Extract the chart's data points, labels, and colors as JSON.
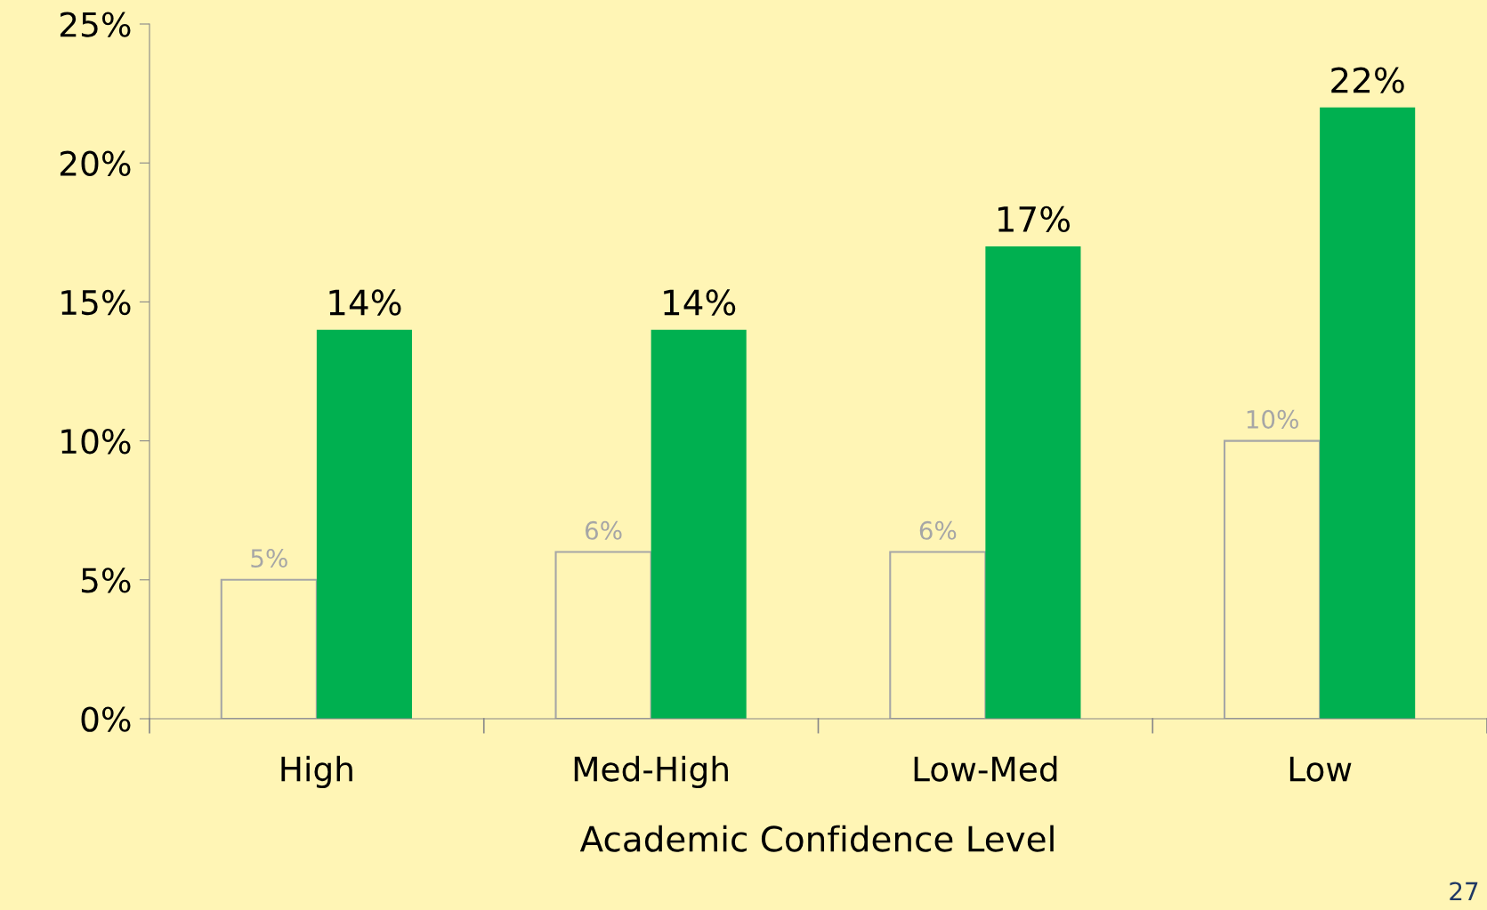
{
  "chart_data": {
    "type": "bar",
    "xlabel": "Academic Confidence Level",
    "categories": [
      "High",
      "Med-High",
      "Low-Med",
      "Low"
    ],
    "series": [
      {
        "color": "#a6a6a6",
        "values": [
          5,
          6,
          6,
          10
        ],
        "value_labels": [
          "5%",
          "6%",
          "6%",
          "10%"
        ]
      },
      {
        "color": "#00b050",
        "values": [
          14,
          14,
          17,
          22
        ],
        "value_labels": [
          "14%",
          "14%",
          "17%",
          "22%"
        ]
      }
    ],
    "ylim": [
      0,
      25
    ],
    "yticks": [
      {
        "value": 0,
        "label": "0%"
      },
      {
        "value": 5,
        "label": "5%"
      },
      {
        "value": 10,
        "label": "10%"
      },
      {
        "value": 15,
        "label": "15%"
      },
      {
        "value": 20,
        "label": "20%"
      },
      {
        "value": 25,
        "label": "25%"
      }
    ],
    "grid": false,
    "legend": false,
    "annotations": [
      "27"
    ]
  }
}
